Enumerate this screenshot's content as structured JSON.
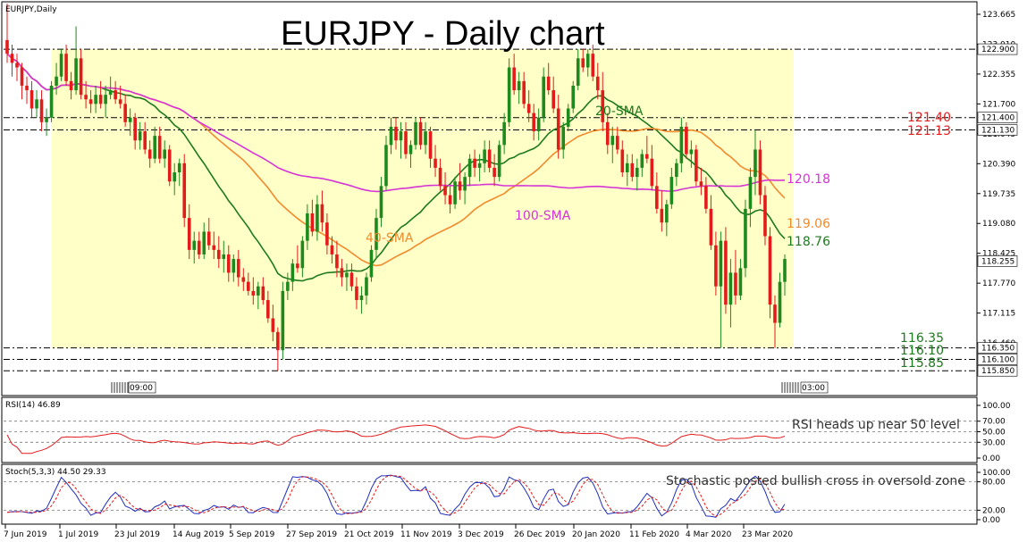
{
  "chart_data": {
    "type": "candlestick",
    "symbol_label": "EURJPY,Daily",
    "title": "EURJPY - Daily chart",
    "x_tick_labels": [
      "7 Jun 2019",
      "1 Jul 2019",
      "23 Jul 2019",
      "14 Aug 2019",
      "5 Sep 2019",
      "27 Sep 2019",
      "21 Oct 2019",
      "11 Nov 2019",
      "3 Dec 2019",
      "26 Dec 2019",
      "20 Jan 2020",
      "11 Feb 2020",
      "4 Mar 2020",
      "23 Mar 2020"
    ],
    "price_axis_ticks": [
      "123.665",
      "123.010",
      "122.355",
      "121.700",
      "121.045",
      "120.390",
      "119.735",
      "119.080",
      "118.425",
      "117.770",
      "117.115",
      "116.460"
    ],
    "ylim": [
      115.6,
      123.9
    ],
    "price_boxes": [
      {
        "text": "122.900",
        "value": 122.9,
        "bg": "#ffffff",
        "fg": "#000000"
      },
      {
        "text": "121.400",
        "value": 121.4,
        "bg": "#ffffff",
        "fg": "#000000"
      },
      {
        "text": "121.130",
        "value": 121.13,
        "bg": "#ffffff",
        "fg": "#000000"
      },
      {
        "text": "118.255",
        "value": 118.255,
        "bg": "#ffffff",
        "fg": "#000000"
      },
      {
        "text": "116.350",
        "value": 116.35,
        "bg": "#ffffff",
        "fg": "#000000"
      },
      {
        "text": "116.100",
        "value": 116.1,
        "bg": "#ffffff",
        "fg": "#000000"
      },
      {
        "text": "115.850",
        "value": 115.85,
        "bg": "#ffffff",
        "fg": "#000000"
      }
    ],
    "horizontal_levels": [
      122.9,
      121.4,
      121.13,
      116.35,
      116.1,
      115.85
    ],
    "level_labels": [
      {
        "text": "121.40",
        "value": 121.4,
        "color": "#e41b1b"
      },
      {
        "text": "121.13",
        "value": 121.13,
        "color": "#e41b1b"
      },
      {
        "text": "116.35",
        "value": 116.35,
        "color": "#1e7a1e"
      },
      {
        "text": "116.10",
        "value": 116.1,
        "color": "#1e7a1e"
      },
      {
        "text": "115.85",
        "value": 115.85,
        "color": "#1e7a1e"
      }
    ],
    "range_box": {
      "top": 122.9,
      "bottom": 116.35,
      "color": "#ffffc8"
    },
    "candles": [
      [
        123.1,
        123.9,
        122.6,
        122.8
      ],
      [
        122.8,
        123.0,
        122.3,
        122.6
      ],
      [
        122.6,
        122.8,
        122.2,
        122.5
      ],
      [
        122.5,
        122.6,
        121.8,
        122.1
      ],
      [
        122.1,
        122.3,
        121.7,
        122.0
      ],
      [
        122.0,
        122.2,
        121.4,
        121.6
      ],
      [
        121.6,
        122.0,
        121.4,
        121.8
      ],
      [
        121.8,
        122.0,
        121.1,
        121.3
      ],
      [
        121.3,
        121.6,
        121.0,
        121.4
      ],
      [
        121.4,
        122.2,
        121.3,
        122.1
      ],
      [
        122.1,
        122.6,
        121.9,
        122.3
      ],
      [
        122.3,
        122.9,
        122.2,
        122.8
      ],
      [
        122.8,
        123.0,
        122.1,
        122.2
      ],
      [
        122.2,
        122.4,
        121.8,
        122.0
      ],
      [
        122.0,
        123.4,
        121.9,
        122.7
      ],
      [
        122.7,
        122.9,
        121.8,
        121.9
      ],
      [
        121.9,
        122.2,
        121.6,
        121.8
      ],
      [
        121.8,
        122.0,
        121.5,
        121.7
      ],
      [
        121.7,
        122.1,
        121.5,
        121.9
      ],
      [
        121.9,
        122.2,
        121.6,
        121.7
      ],
      [
        121.7,
        122.1,
        121.4,
        121.9
      ],
      [
        121.9,
        122.3,
        121.8,
        122.0
      ],
      [
        122.0,
        122.2,
        121.7,
        121.8
      ],
      [
        121.8,
        122.1,
        121.6,
        121.7
      ],
      [
        121.7,
        121.9,
        121.2,
        121.3
      ],
      [
        121.3,
        121.6,
        121.0,
        121.4
      ],
      [
        121.4,
        121.5,
        120.7,
        120.9
      ],
      [
        120.9,
        121.3,
        120.7,
        121.1
      ],
      [
        121.1,
        121.3,
        120.6,
        120.7
      ],
      [
        120.7,
        120.9,
        120.3,
        120.5
      ],
      [
        120.5,
        121.2,
        120.4,
        121.0
      ],
      [
        121.0,
        121.2,
        120.4,
        120.5
      ],
      [
        120.5,
        120.9,
        120.3,
        120.7
      ],
      [
        120.7,
        120.8,
        119.9,
        120.0
      ],
      [
        120.0,
        120.4,
        119.7,
        120.2
      ],
      [
        120.2,
        120.5,
        119.9,
        120.4
      ],
      [
        120.4,
        120.6,
        119.0,
        119.2
      ],
      [
        119.2,
        119.5,
        118.3,
        118.5
      ],
      [
        118.5,
        118.9,
        118.2,
        118.7
      ],
      [
        118.7,
        118.9,
        118.3,
        118.4
      ],
      [
        118.4,
        119.1,
        118.3,
        118.9
      ],
      [
        118.9,
        119.2,
        118.5,
        118.6
      ],
      [
        118.6,
        118.9,
        118.3,
        118.5
      ],
      [
        118.5,
        118.8,
        118.1,
        118.3
      ],
      [
        118.3,
        118.7,
        118.0,
        118.4
      ],
      [
        118.4,
        118.6,
        117.8,
        118.0
      ],
      [
        118.0,
        118.4,
        117.8,
        118.3
      ],
      [
        118.3,
        118.5,
        117.7,
        117.9
      ],
      [
        117.9,
        118.1,
        117.6,
        117.8
      ],
      [
        117.8,
        118.0,
        117.5,
        117.6
      ],
      [
        117.6,
        117.9,
        117.3,
        117.5
      ],
      [
        117.5,
        117.8,
        117.2,
        117.7
      ],
      [
        117.7,
        117.9,
        117.3,
        117.4
      ],
      [
        117.4,
        117.6,
        116.9,
        117.0
      ],
      [
        117.0,
        117.3,
        116.5,
        116.7
      ],
      [
        116.7,
        116.8,
        115.85,
        116.3
      ],
      [
        116.3,
        117.8,
        116.1,
        117.6
      ],
      [
        117.6,
        118.0,
        117.4,
        117.8
      ],
      [
        117.8,
        118.3,
        117.6,
        118.2
      ],
      [
        118.2,
        118.6,
        118.0,
        118.1
      ],
      [
        118.1,
        118.8,
        117.9,
        118.7
      ],
      [
        118.7,
        119.5,
        118.5,
        119.3
      ],
      [
        119.3,
        119.6,
        118.8,
        118.9
      ],
      [
        118.9,
        119.7,
        118.7,
        119.5
      ],
      [
        119.5,
        119.8,
        118.9,
        119.1
      ],
      [
        119.1,
        119.3,
        118.4,
        118.6
      ],
      [
        118.6,
        118.8,
        118.2,
        118.4
      ],
      [
        118.4,
        118.7,
        117.9,
        118.1
      ],
      [
        118.1,
        118.3,
        117.7,
        117.9
      ],
      [
        117.9,
        118.2,
        117.6,
        118.0
      ],
      [
        118.0,
        118.2,
        117.6,
        117.7
      ],
      [
        117.7,
        117.9,
        117.2,
        117.4
      ],
      [
        117.4,
        117.7,
        117.1,
        117.5
      ],
      [
        117.5,
        118.0,
        117.3,
        117.9
      ],
      [
        117.9,
        118.6,
        117.8,
        118.5
      ],
      [
        118.5,
        119.4,
        118.3,
        119.2
      ],
      [
        119.2,
        120.1,
        119.0,
        119.9
      ],
      [
        119.9,
        121.0,
        119.8,
        120.8
      ],
      [
        120.8,
        121.4,
        120.6,
        121.2
      ],
      [
        121.2,
        121.4,
        120.7,
        120.9
      ],
      [
        120.9,
        121.3,
        120.5,
        121.1
      ],
      [
        121.1,
        121.3,
        120.5,
        120.6
      ],
      [
        120.6,
        120.9,
        120.3,
        120.8
      ],
      [
        120.8,
        121.4,
        120.7,
        121.3
      ],
      [
        121.3,
        121.4,
        120.7,
        120.8
      ],
      [
        120.8,
        121.3,
        120.6,
        121.1
      ],
      [
        121.1,
        121.2,
        120.3,
        120.5
      ],
      [
        120.5,
        120.8,
        120.1,
        120.3
      ],
      [
        120.3,
        120.5,
        119.8,
        119.9
      ],
      [
        119.9,
        120.2,
        119.5,
        119.7
      ],
      [
        119.7,
        119.9,
        119.3,
        119.5
      ],
      [
        119.5,
        120.1,
        119.4,
        120.0
      ],
      [
        120.0,
        120.4,
        119.6,
        119.8
      ],
      [
        119.8,
        120.2,
        119.5,
        120.1
      ],
      [
        120.1,
        120.6,
        119.9,
        120.5
      ],
      [
        120.5,
        120.7,
        120.1,
        120.3
      ],
      [
        120.3,
        120.6,
        120.0,
        120.4
      ],
      [
        120.4,
        120.9,
        120.2,
        120.7
      ],
      [
        120.7,
        120.9,
        120.2,
        120.3
      ],
      [
        120.3,
        120.6,
        119.9,
        120.1
      ],
      [
        120.1,
        120.9,
        120.0,
        120.8
      ],
      [
        120.8,
        121.5,
        120.6,
        121.3
      ],
      [
        121.3,
        122.7,
        121.2,
        122.5
      ],
      [
        122.5,
        122.8,
        121.9,
        122.0
      ],
      [
        122.0,
        122.4,
        121.7,
        122.2
      ],
      [
        122.2,
        122.4,
        121.6,
        121.7
      ],
      [
        121.7,
        122.0,
        121.3,
        121.5
      ],
      [
        121.5,
        121.7,
        120.9,
        121.1
      ],
      [
        121.1,
        121.6,
        120.9,
        121.4
      ],
      [
        121.4,
        122.5,
        121.3,
        122.3
      ],
      [
        122.3,
        122.6,
        121.9,
        122.0
      ],
      [
        122.0,
        122.3,
        121.5,
        121.6
      ],
      [
        121.6,
        121.9,
        120.5,
        120.7
      ],
      [
        120.7,
        121.3,
        120.5,
        121.2
      ],
      [
        121.2,
        121.7,
        121.1,
        121.6
      ],
      [
        121.6,
        122.2,
        121.5,
        122.1
      ],
      [
        122.1,
        122.9,
        122.0,
        122.7
      ],
      [
        122.7,
        122.9,
        122.4,
        122.5
      ],
      [
        122.5,
        122.9,
        122.3,
        122.8
      ],
      [
        122.8,
        123.0,
        122.2,
        122.3
      ],
      [
        122.3,
        122.6,
        121.8,
        122.0
      ],
      [
        122.0,
        122.4,
        121.1,
        121.3
      ],
      [
        121.3,
        121.5,
        120.6,
        120.8
      ],
      [
        120.8,
        121.2,
        120.4,
        121.0
      ],
      [
        121.0,
        121.2,
        120.6,
        120.7
      ],
      [
        120.7,
        120.9,
        120.1,
        120.2
      ],
      [
        120.2,
        120.6,
        119.9,
        120.4
      ],
      [
        120.4,
        120.6,
        120.0,
        120.1
      ],
      [
        120.1,
        120.5,
        119.8,
        120.3
      ],
      [
        120.3,
        120.7,
        120.1,
        120.6
      ],
      [
        120.6,
        121.0,
        120.4,
        120.5
      ],
      [
        120.5,
        120.8,
        119.8,
        119.9
      ],
      [
        119.9,
        120.2,
        119.3,
        119.4
      ],
      [
        119.4,
        119.8,
        118.9,
        119.1
      ],
      [
        119.1,
        119.6,
        118.8,
        119.5
      ],
      [
        119.5,
        120.3,
        119.4,
        120.1
      ],
      [
        120.1,
        120.5,
        119.9,
        120.4
      ],
      [
        120.4,
        121.4,
        120.2,
        121.2
      ],
      [
        121.2,
        121.3,
        120.5,
        120.6
      ],
      [
        120.6,
        120.9,
        120.3,
        120.7
      ],
      [
        120.7,
        120.8,
        119.9,
        120.0
      ],
      [
        120.0,
        120.3,
        119.7,
        119.9
      ],
      [
        119.9,
        120.1,
        119.3,
        119.4
      ],
      [
        119.4,
        119.7,
        118.5,
        118.6
      ],
      [
        118.6,
        118.9,
        117.5,
        117.7
      ],
      [
        117.7,
        118.9,
        116.35,
        118.7
      ],
      [
        118.7,
        119.0,
        117.1,
        117.3
      ],
      [
        117.3,
        118.3,
        116.8,
        118.0
      ],
      [
        118.0,
        118.5,
        117.3,
        117.5
      ],
      [
        117.5,
        118.3,
        117.4,
        118.1
      ],
      [
        118.1,
        119.6,
        117.9,
        119.4
      ],
      [
        119.4,
        120.3,
        119.0,
        120.1
      ],
      [
        120.1,
        121.13,
        119.7,
        120.7
      ],
      [
        120.7,
        120.9,
        119.5,
        119.7
      ],
      [
        119.7,
        119.9,
        118.6,
        118.8
      ],
      [
        118.8,
        119.0,
        117.0,
        117.3
      ],
      [
        117.3,
        117.5,
        116.35,
        116.9
      ],
      [
        116.9,
        118.0,
        116.8,
        117.8
      ],
      [
        117.8,
        118.4,
        117.5,
        118.3
      ]
    ],
    "overlays": [
      {
        "name": "20-SMA",
        "color": "#1e7a1e",
        "label_value": 120.95
      },
      {
        "name": "40-SMA",
        "color": "#f28a2e",
        "label_value": 118.45
      },
      {
        "name": "100-SMA",
        "color": "#d633d6",
        "label_value": 119.15
      }
    ],
    "overlay_end_labels": [
      {
        "text": "120.18",
        "value": 120.18,
        "color": "#d633d6"
      },
      {
        "text": "119.06",
        "value": 119.06,
        "color": "#f28a2e"
      },
      {
        "text": "118.76",
        "value": 118.76,
        "color": "#1e7a1e"
      }
    ],
    "time_markers": [
      "09:00",
      "03:00"
    ],
    "rsi": {
      "label": "RSI(14) 46.89",
      "ylim": [
        0,
        100
      ],
      "ticks": [
        "100.00",
        "70.00",
        "50.00",
        "30.00",
        "0.00"
      ],
      "guide_levels": [
        70,
        50,
        30
      ],
      "annotation": "RSI heads up near 50 level",
      "color": "#e41b1b"
    },
    "stoch": {
      "label": "Stoch(5,3,3) 44.50 29.33",
      "ylim": [
        0,
        100
      ],
      "ticks": [
        "100.00",
        "80.00",
        "20.00",
        "0.00"
      ],
      "guide_levels": [
        80,
        20
      ],
      "annotation": "Stochastic posted bullish cross in oversold zone",
      "main_color": "#1f2fbf",
      "signal_color": "#e41b1b"
    }
  }
}
